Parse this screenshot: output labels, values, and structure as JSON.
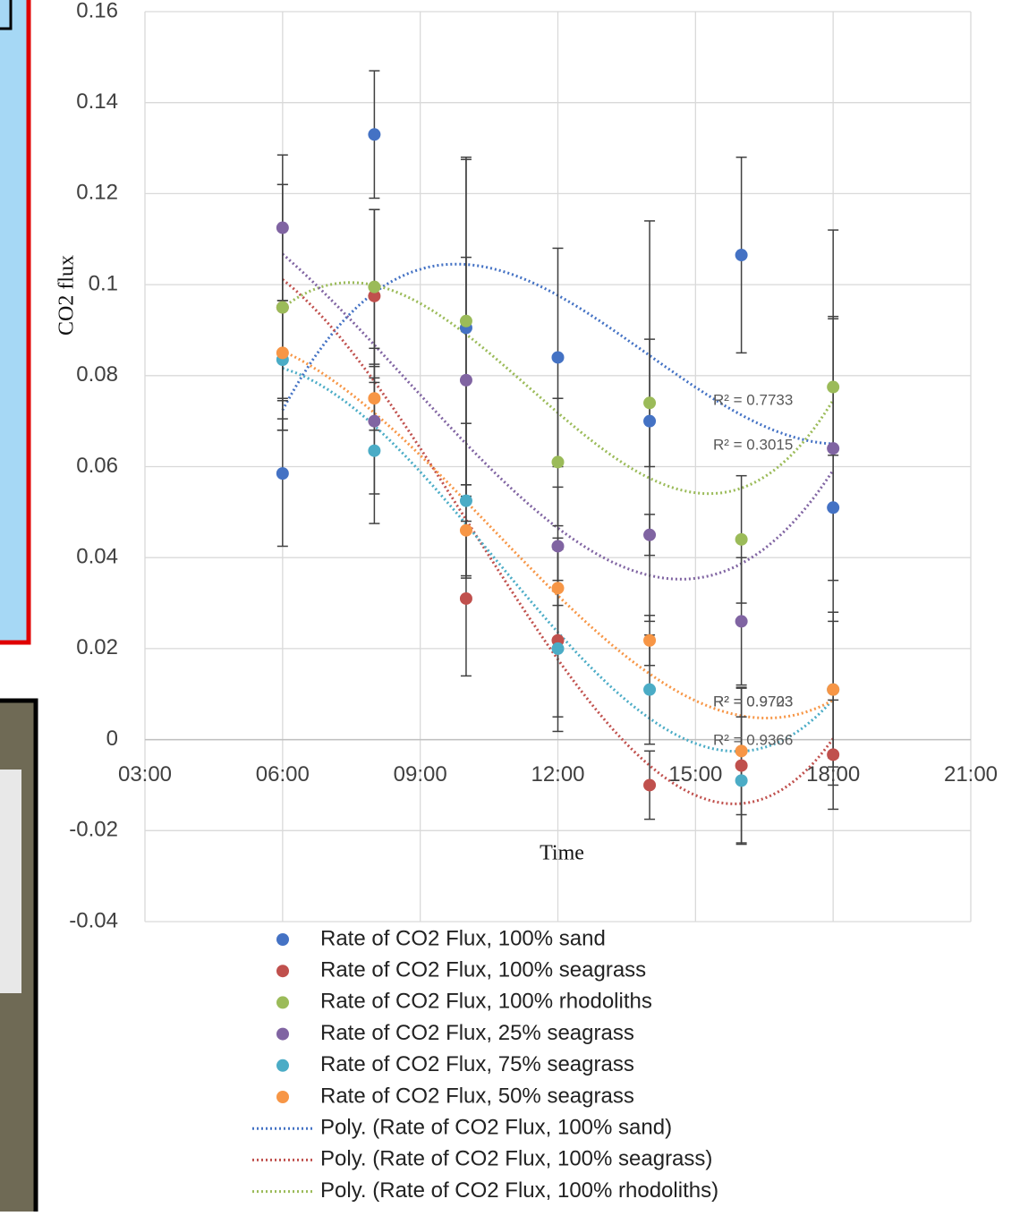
{
  "chart_data": {
    "type": "scatter",
    "x_label": "Time",
    "y_label": "CO2 flux",
    "x": [
      6,
      8,
      10,
      12,
      14,
      16,
      18
    ],
    "xlim": [
      3,
      21
    ],
    "xticks": [
      {
        "value": 3,
        "label": "03:00"
      },
      {
        "value": 6,
        "label": "06:00"
      },
      {
        "value": 9,
        "label": "09:00"
      },
      {
        "value": 12,
        "label": "12:00"
      },
      {
        "value": 15,
        "label": "15:00"
      },
      {
        "value": 18,
        "label": "18:00"
      },
      {
        "value": 21,
        "label": "21:00"
      }
    ],
    "ylim": [
      -0.04,
      0.16
    ],
    "yticks": [
      -0.04,
      -0.02,
      0,
      0.02,
      0.04,
      0.06,
      0.08,
      0.1,
      0.12,
      0.14,
      0.16
    ],
    "grid": true,
    "series": [
      {
        "name": "Rate of CO2 Flux, 100% sand",
        "color": "#4472c4",
        "values": [
          0.0585,
          0.133,
          0.0905,
          0.084,
          0.07,
          0.1065,
          0.051
        ],
        "errors": [
          0.016,
          0.014,
          0.037,
          0.024,
          0.044,
          0.0215,
          0.061
        ],
        "trend_name": "Poly. (Rate of CO2 Flux, 100% sand)"
      },
      {
        "name": "Rate of CO2 Flux, 100% seagrass",
        "color": "#c0504d",
        "values": [
          0.095,
          0.0975,
          0.031,
          0.0218,
          -0.01,
          -0.0057,
          -0.0033
        ],
        "errors": [
          0.027,
          0.019,
          0.017,
          0.02,
          0.0075,
          0.017,
          0.012
        ],
        "trend_name": "Poly. (Rate of CO2 Flux, 100% seagrass)"
      },
      {
        "name": "Rate of CO2 Flux, 100% rhodoliths",
        "color": "#9bbb59",
        "values": [
          0.095,
          0.0995,
          0.092,
          0.061,
          0.074,
          0.044,
          0.0775
        ],
        "errors": [
          0.027,
          0.017,
          0.036,
          0.014,
          0.014,
          0.014,
          0.015
        ],
        "trend_name": "Poly. (Rate of CO2 Flux, 100% rhodoliths)"
      },
      {
        "name": "Rate of CO2 Flux, 25% seagrass",
        "color": "#8064a2",
        "values": [
          0.1125,
          0.07,
          0.079,
          0.0425,
          0.045,
          0.026,
          0.064
        ],
        "errors": [
          0.016,
          0.016,
          0.027,
          0.013,
          0.0045,
          0.014,
          0.029
        ]
      },
      {
        "name": "Rate of CO2 Flux, 75% seagrass",
        "color": "#4bacc6",
        "values": [
          0.0835,
          0.0635,
          0.0525,
          0.02,
          0.011,
          -0.009,
          0.011
        ],
        "errors": [
          0.013,
          0.016,
          0.017,
          0.015,
          0.012,
          0.014,
          0.017
        ]
      },
      {
        "name": "Rate of CO2 Flux, 50% seagrass",
        "color": "#f79646",
        "values": [
          0.085,
          0.075,
          0.046,
          0.0333,
          0.0218,
          -0.0025,
          0.011
        ],
        "errors": [
          0.01,
          0.007,
          0.01,
          0.011,
          0.0055,
          0.014,
          0.015
        ]
      }
    ],
    "annotations": [
      "R² = 0.7733",
      "R² = 0.3015",
      "R² = 0.9703",
      "R² = 0.9723",
      "R² = 0.9366"
    ]
  }
}
